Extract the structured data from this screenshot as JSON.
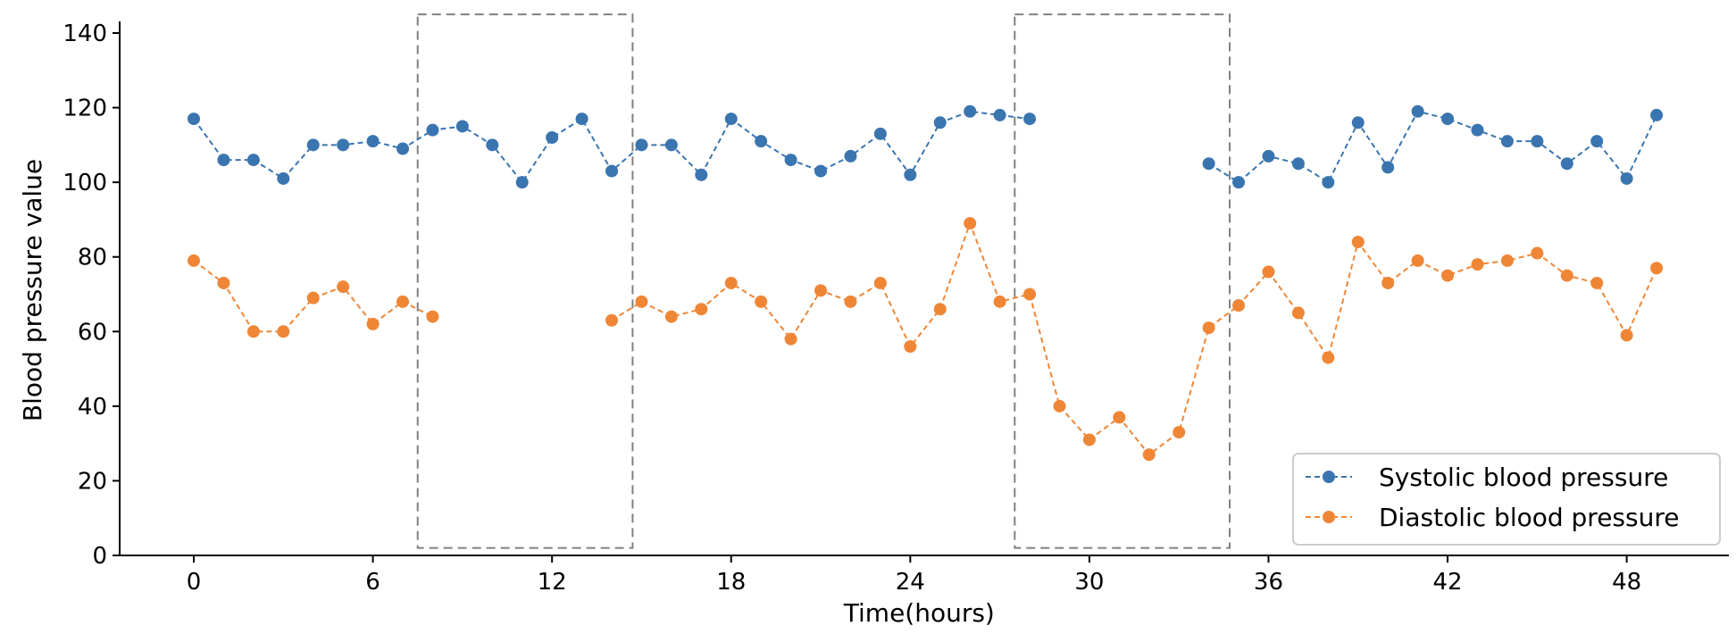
{
  "chart_data": {
    "type": "line",
    "xlabel": "Time(hours)",
    "ylabel": "Blood pressure value",
    "xlim": [
      -2,
      51
    ],
    "ylim": [
      0,
      140
    ],
    "xticks": [
      0,
      6,
      12,
      18,
      24,
      30,
      36,
      42,
      48
    ],
    "yticks": [
      0,
      20,
      40,
      60,
      80,
      100,
      120,
      140
    ],
    "grid": false,
    "legend_position": "bottom-right",
    "highlight_regions": [
      {
        "x0": 7.5,
        "x1": 14.7,
        "y0": 2,
        "y1": 145
      },
      {
        "x0": 27.5,
        "x1": 34.7,
        "y0": 2,
        "y1": 145
      }
    ],
    "series": [
      {
        "name": "Systolic blood pressure",
        "color": "#3a75b0",
        "marker": "circle",
        "line_style": "dashed",
        "x": [
          0,
          1,
          2,
          3,
          4,
          5,
          6,
          7,
          8,
          9,
          10,
          11,
          12,
          13,
          14,
          15,
          16,
          17,
          18,
          19,
          20,
          21,
          22,
          23,
          24,
          25,
          26,
          27,
          28,
          34,
          35,
          36,
          37,
          38,
          39,
          40,
          41,
          42,
          43,
          44,
          45,
          46,
          47,
          48,
          49
        ],
        "y": [
          117,
          106,
          106,
          101,
          110,
          110,
          111,
          109,
          114,
          115,
          110,
          100,
          112,
          117,
          103,
          110,
          110,
          102,
          117,
          111,
          106,
          103,
          107,
          113,
          102,
          116,
          119,
          118,
          117,
          105,
          100,
          107,
          105,
          100,
          116,
          104,
          119,
          117,
          114,
          111,
          111,
          105,
          111,
          101,
          118
        ]
      },
      {
        "name": "Diastolic blood pressure",
        "color": "#ef8636",
        "marker": "circle",
        "line_style": "dashed",
        "x": [
          0,
          1,
          2,
          3,
          4,
          5,
          6,
          7,
          8,
          14,
          15,
          16,
          17,
          18,
          19,
          20,
          21,
          22,
          23,
          24,
          25,
          26,
          27,
          28,
          29,
          30,
          31,
          32,
          33,
          34,
          35,
          36,
          37,
          38,
          39,
          40,
          41,
          42,
          43,
          44,
          45,
          46,
          47,
          48,
          49
        ],
        "y": [
          79,
          73,
          60,
          60,
          69,
          72,
          62,
          68,
          64,
          63,
          68,
          64,
          66,
          73,
          68,
          58,
          71,
          68,
          73,
          56,
          66,
          89,
          68,
          70,
          40,
          31,
          37,
          27,
          33,
          61,
          67,
          76,
          65,
          53,
          84,
          73,
          79,
          75,
          78,
          79,
          81,
          75,
          73,
          59,
          77
        ]
      }
    ]
  }
}
